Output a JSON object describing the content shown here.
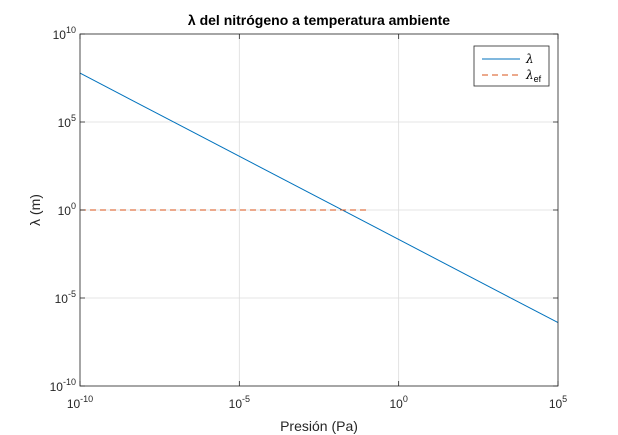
{
  "chart_data": {
    "type": "line",
    "title": "λ del nitrógeno a temperatura ambiente",
    "xlabel": "Presión (Pa)",
    "ylabel": "λ (m)",
    "xscale": "log",
    "yscale": "log",
    "xlim": [
      1e-10,
      100000
    ],
    "ylim": [
      1e-10,
      10000000000
    ],
    "grid": true,
    "legend_position": "top-right",
    "x_ticks": [
      {
        "base": "10",
        "exp": "-10",
        "value": 1e-10
      },
      {
        "base": "10",
        "exp": "-5",
        "value": 1e-05
      },
      {
        "base": "10",
        "exp": "0",
        "value": 1
      },
      {
        "base": "10",
        "exp": "5",
        "value": 100000
      }
    ],
    "y_ticks": [
      {
        "base": "10",
        "exp": "-10",
        "value": 1e-10
      },
      {
        "base": "10",
        "exp": "-5",
        "value": 1e-05
      },
      {
        "base": "10",
        "exp": "0",
        "value": 1
      },
      {
        "base": "10",
        "exp": "5",
        "value": 100000
      },
      {
        "base": "10",
        "exp": "10",
        "value": 10000000000
      }
    ],
    "series": [
      {
        "name": "λ",
        "color": "#0072BD",
        "style": "solid",
        "x": [
          1e-10,
          100000
        ],
        "y": [
          60000000,
          4e-07
        ]
      },
      {
        "name": "λ_ef",
        "legend_main": "λ",
        "legend_sub": "ef",
        "color": "#D95319",
        "style": "dashed",
        "x": [
          1e-10,
          0.1
        ],
        "y": [
          1,
          1
        ]
      }
    ]
  }
}
